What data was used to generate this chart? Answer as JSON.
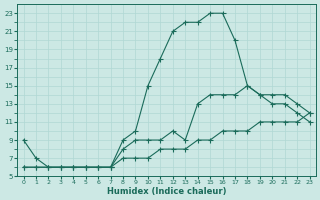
{
  "xlabel": "Humidex (Indice chaleur)",
  "bg_color": "#cce8e4",
  "grid_color": "#b0d8d4",
  "line_color": "#1a6b5a",
  "xlim": [
    -0.5,
    23.5
  ],
  "ylim": [
    5,
    24
  ],
  "xticks": [
    0,
    1,
    2,
    3,
    4,
    5,
    6,
    7,
    8,
    9,
    10,
    11,
    12,
    13,
    14,
    15,
    16,
    17,
    18,
    19,
    20,
    21,
    22,
    23
  ],
  "yticks": [
    5,
    7,
    9,
    11,
    13,
    15,
    17,
    19,
    21,
    23
  ],
  "line1_x": [
    0,
    1,
    2,
    3,
    4,
    5,
    6,
    7,
    8,
    9,
    10,
    11,
    12,
    13,
    14,
    15,
    16,
    17,
    18,
    19,
    20,
    21,
    22,
    23
  ],
  "line1_y": [
    9,
    7,
    6,
    6,
    6,
    6,
    6,
    6,
    9,
    10,
    15,
    18,
    21,
    22,
    22,
    23,
    23,
    20,
    15,
    14,
    13,
    13,
    12,
    11
  ],
  "line2_x": [
    0,
    1,
    2,
    3,
    4,
    5,
    6,
    7,
    8,
    9,
    10,
    11,
    12,
    13,
    14,
    15,
    16,
    17,
    18,
    19,
    20,
    21,
    22,
    23
  ],
  "line2_y": [
    6,
    6,
    6,
    6,
    6,
    6,
    6,
    6,
    8,
    9,
    9,
    9,
    10,
    9,
    13,
    14,
    14,
    14,
    15,
    14,
    14,
    14,
    13,
    12
  ],
  "line3_x": [
    0,
    1,
    2,
    3,
    4,
    5,
    6,
    7,
    8,
    9,
    10,
    11,
    12,
    13,
    14,
    15,
    16,
    17,
    18,
    19,
    20,
    21,
    22,
    23
  ],
  "line3_y": [
    6,
    6,
    6,
    6,
    6,
    6,
    6,
    6,
    7,
    7,
    7,
    8,
    8,
    8,
    9,
    9,
    10,
    10,
    10,
    11,
    11,
    11,
    11,
    12
  ]
}
